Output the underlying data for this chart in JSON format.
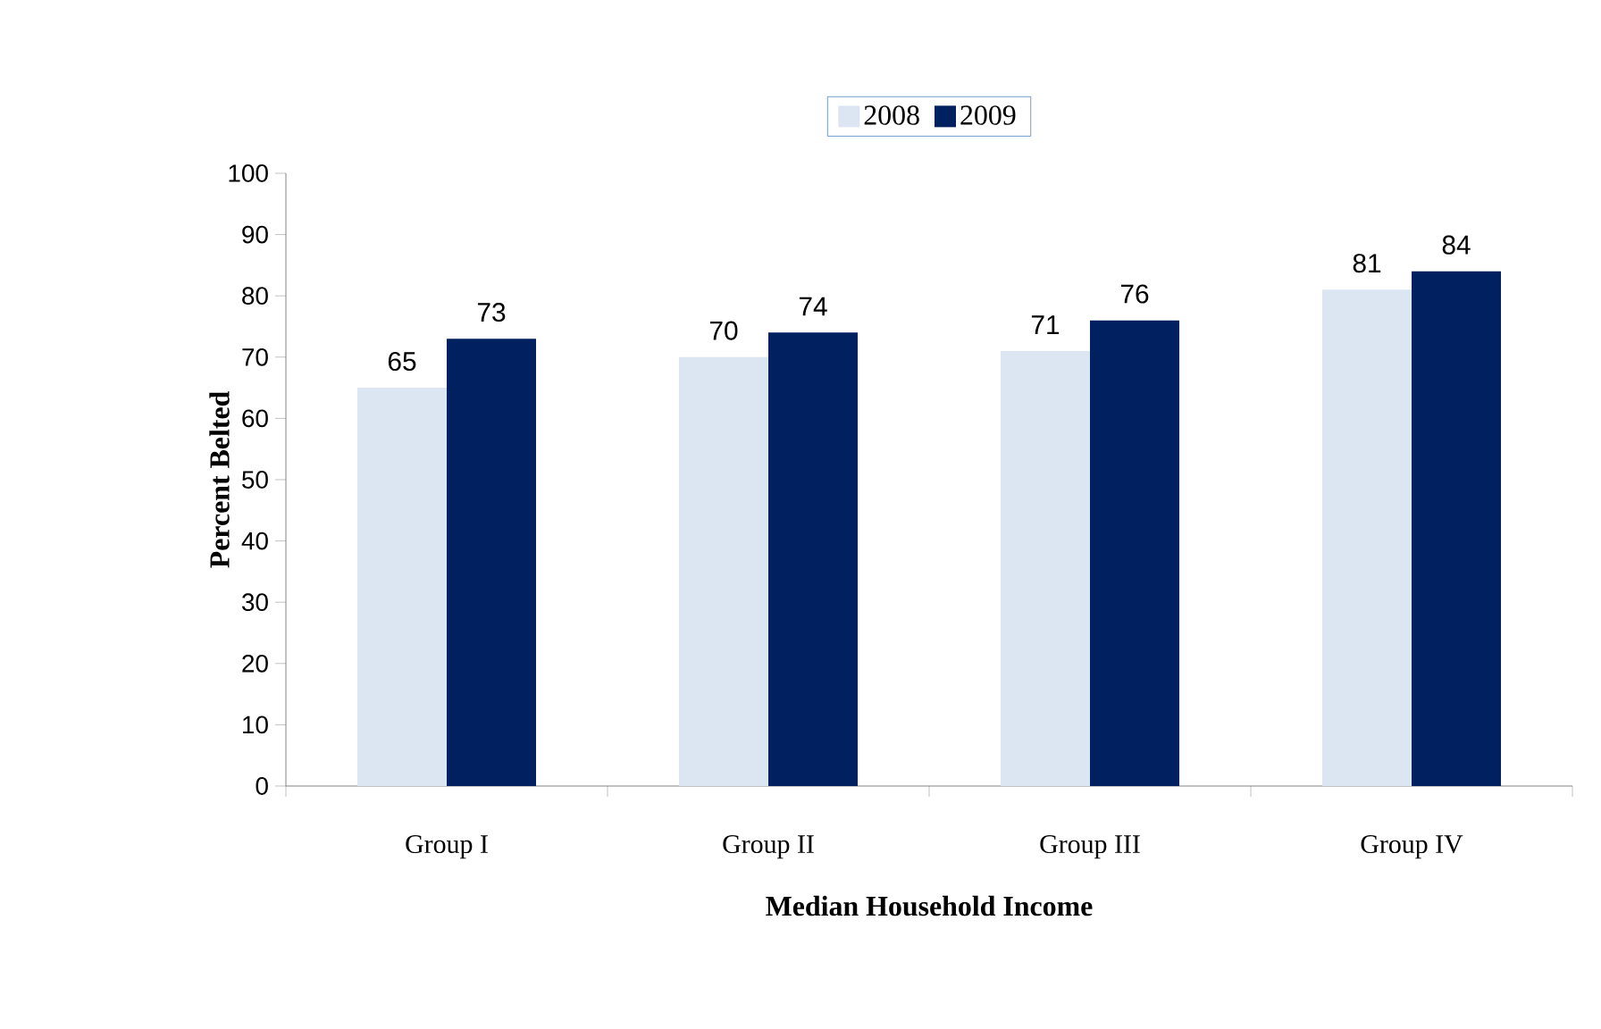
{
  "chart_data": {
    "type": "bar",
    "xlabel": "Median Household Income",
    "ylabel": "Percent Belted",
    "categories": [
      "Group I",
      "Group II",
      "Group III",
      "Group IV"
    ],
    "series": [
      {
        "name": "2008",
        "color": "#dce6f2",
        "values": [
          65,
          70,
          71,
          81
        ]
      },
      {
        "name": "2009",
        "color": "#002060",
        "values": [
          73,
          74,
          76,
          84
        ]
      }
    ],
    "ylim": [
      0,
      100
    ],
    "yticks": [
      0,
      10,
      20,
      30,
      40,
      50,
      60,
      70,
      80,
      90,
      100
    ],
    "data_labels": true,
    "legend": "top",
    "grid": false
  }
}
